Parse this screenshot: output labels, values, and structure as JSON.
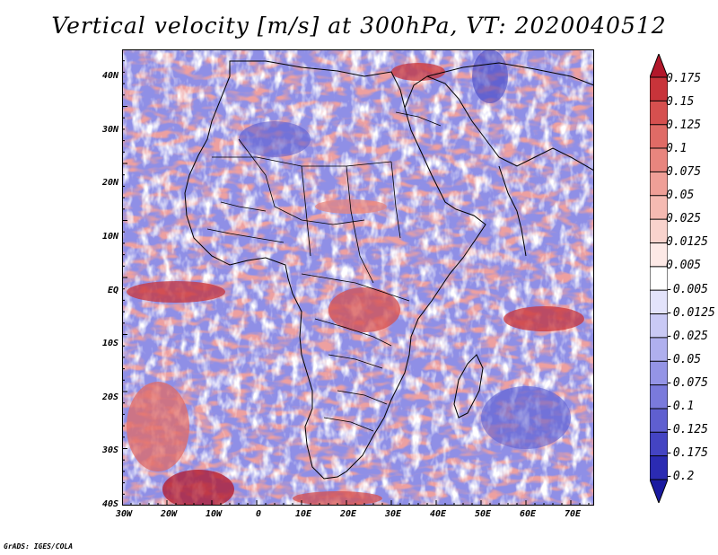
{
  "title": "Vertical velocity [m/s] at 300hPa, VT: 2020040512",
  "credit": "GrADS: IGES/COLA",
  "map": {
    "latitude_labels": [
      "40N",
      "30N",
      "20N",
      "10N",
      "EQ",
      "10S",
      "20S",
      "30S",
      "40S"
    ],
    "longitude_labels": [
      "30W",
      "20W",
      "10W",
      "0",
      "10E",
      "20E",
      "30E",
      "40E",
      "50E",
      "60E",
      "70E"
    ]
  },
  "colorbar": {
    "labels": [
      "0.175",
      "0.15",
      "0.125",
      "0.1",
      "0.075",
      "0.05",
      "0.025",
      "0.0125",
      "0.005",
      "-0.005",
      "-0.0125",
      "-0.025",
      "-0.05",
      "-0.075",
      "-0.1",
      "-0.125",
      "-0.175",
      "-0.2"
    ],
    "colors": [
      "#b2182b",
      "#c8343a",
      "#d6504f",
      "#e06b66",
      "#e8857e",
      "#ef9f97",
      "#f5bab2",
      "#f9d3cd",
      "#fde9e6",
      "#ffffff",
      "#e3e3fb",
      "#c9c9f5",
      "#afafee",
      "#9494e6",
      "#7a7adc",
      "#5f5fd0",
      "#4444c3",
      "#2b2bb3",
      "#1a1aa0"
    ]
  }
}
